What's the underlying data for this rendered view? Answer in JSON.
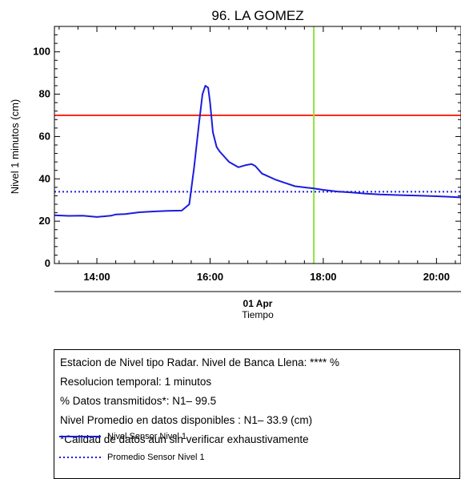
{
  "chart_data": {
    "type": "line",
    "title": "96. LA GOMEZ",
    "ylabel": "Nivel 1 minutos (cm)",
    "xlabel": "Tiempo",
    "date_label": "01 Apr",
    "x_ticks": [
      "14:00",
      "16:00",
      "18:00",
      "20:00"
    ],
    "y_ticks": [
      0,
      20,
      40,
      60,
      80,
      100
    ],
    "xlim": [
      "13:15",
      "20:26"
    ],
    "ylim": [
      0,
      112
    ],
    "series": [
      {
        "name": "Nivel Sensor Nivel 1",
        "color": "#1c1cde",
        "style": "solid",
        "x": [
          "13:15",
          "13:30",
          "13:45",
          "14:00",
          "14:15",
          "14:20",
          "14:30",
          "14:45",
          "15:00",
          "15:15",
          "15:30",
          "15:38",
          "15:43",
          "15:48",
          "15:52",
          "15:55",
          "15:58",
          "16:00",
          "16:03",
          "16:07",
          "16:10",
          "16:15",
          "16:20",
          "16:30",
          "16:38",
          "16:44",
          "16:48",
          "16:55",
          "17:00",
          "17:10",
          "17:20",
          "17:30",
          "17:40",
          "17:50",
          "18:00",
          "18:15",
          "18:30",
          "18:45",
          "19:00",
          "19:15",
          "19:30",
          "19:45",
          "20:00",
          "20:15",
          "20:26"
        ],
        "y": [
          22.8,
          22.5,
          22.6,
          22,
          22.6,
          23.2,
          23.4,
          24.2,
          24.6,
          24.9,
          25,
          28,
          45,
          65,
          80,
          84,
          83,
          76,
          62,
          55,
          53,
          50.5,
          48,
          45.5,
          46.5,
          47,
          46,
          42.5,
          41.5,
          39.5,
          38,
          36.5,
          36,
          35.5,
          34.8,
          34,
          33.6,
          33,
          32.6,
          32.4,
          32.2,
          32,
          31.8,
          31.5,
          31.2
        ]
      },
      {
        "name": "Promedio Sensor Nivel 1",
        "color": "#1c1cde",
        "style": "dotted",
        "y_const": 33.9
      }
    ],
    "reference_lines": [
      {
        "axis": "y",
        "value": 70,
        "color": "#ff2a1a"
      },
      {
        "axis": "x",
        "value": "17:50",
        "color": "#8ee43c"
      }
    ],
    "grid": false
  },
  "info": {
    "lines": [
      "Estacion de Nivel tipo Radar. Nivel de Banca Llena: **** %",
      "Resolucion temporal: 1 minutos",
      "% Datos transmitidos*: N1– 99.5",
      "Nivel Promedio en datos disponibles : N1– 33.9 (cm)",
      "*Calidad de datos aun sin verificar exhaustivamente"
    ],
    "legend": [
      "Nivel Sensor Nivel 1",
      "Promedio Sensor Nivel 1"
    ]
  }
}
